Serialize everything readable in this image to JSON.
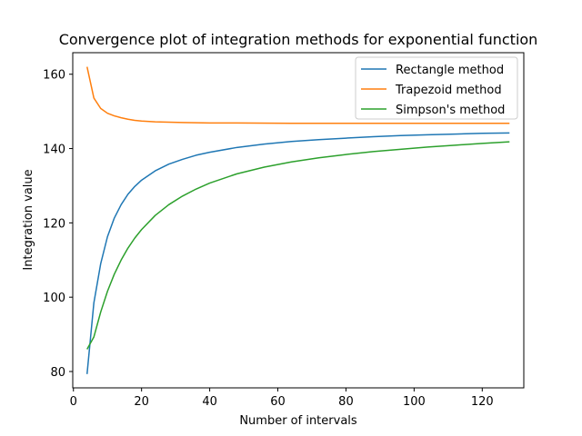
{
  "chart_data": {
    "type": "line",
    "title": "Convergence plot of integration methods for exponential function",
    "xlabel": "Number of intervals",
    "ylabel": "Integration value",
    "xlim": [
      -0.2,
      132.2
    ],
    "ylim": [
      75.6,
      165.8
    ],
    "x_ticks": [
      0,
      20,
      40,
      60,
      80,
      100,
      120
    ],
    "y_ticks": [
      80,
      100,
      120,
      140,
      160
    ],
    "grid": false,
    "legend_position": "top-right",
    "series": [
      {
        "name": "Rectangle method",
        "color": "#1f77b4",
        "x": [
          4,
          6,
          8,
          10,
          12,
          14,
          16,
          18,
          20,
          24,
          28,
          32,
          36,
          40,
          48,
          56,
          64,
          72,
          80,
          88,
          96,
          104,
          112,
          120,
          128
        ],
        "values": [
          79.3,
          98.5,
          109.0,
          116.3,
          121.3,
          124.9,
          127.7,
          129.8,
          131.5,
          134.0,
          135.8,
          137.1,
          138.2,
          139.0,
          140.3,
          141.2,
          141.9,
          142.4,
          142.8,
          143.2,
          143.5,
          143.7,
          143.9,
          144.1,
          144.2
        ]
      },
      {
        "name": "Trapezoid method",
        "color": "#ff7f0e",
        "x": [
          4,
          6,
          8,
          10,
          12,
          14,
          16,
          18,
          20,
          24,
          28,
          32,
          40,
          48,
          64,
          80,
          96,
          112,
          128
        ],
        "values": [
          162.0,
          153.6,
          150.8,
          149.5,
          148.8,
          148.3,
          147.9,
          147.6,
          147.4,
          147.2,
          147.1,
          147.0,
          146.9,
          146.9,
          146.8,
          146.8,
          146.8,
          146.8,
          146.8
        ]
      },
      {
        "name": "Simpson's method",
        "color": "#2ca02c",
        "x": [
          4,
          6,
          8,
          10,
          12,
          14,
          16,
          18,
          20,
          24,
          28,
          32,
          36,
          40,
          48,
          56,
          64,
          72,
          80,
          88,
          96,
          104,
          112,
          120,
          128
        ],
        "values": [
          86.0,
          89.3,
          96.0,
          101.6,
          106.2,
          110.0,
          113.2,
          115.9,
          118.2,
          122.0,
          124.9,
          127.2,
          129.1,
          130.7,
          133.2,
          135.0,
          136.4,
          137.5,
          138.4,
          139.2,
          139.8,
          140.4,
          140.9,
          141.4,
          141.8
        ]
      }
    ]
  }
}
